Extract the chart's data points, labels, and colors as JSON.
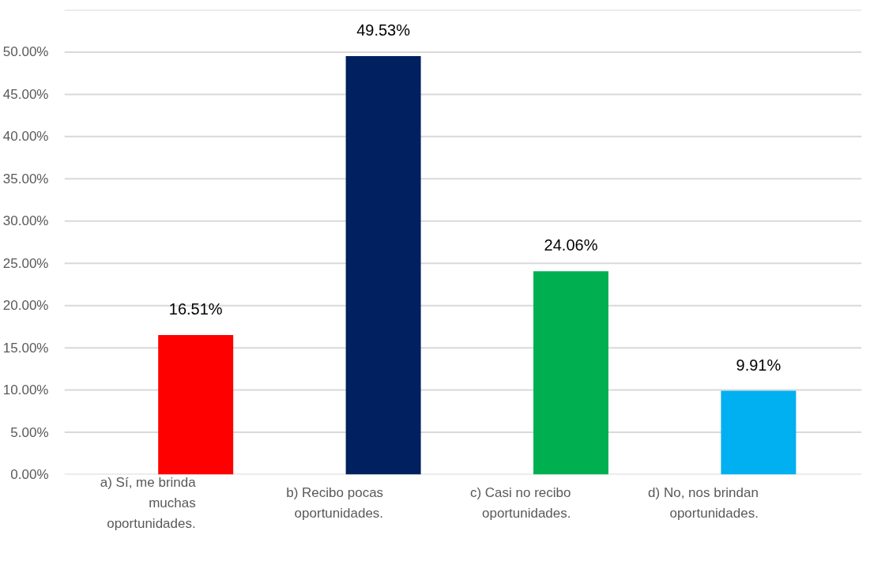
{
  "chart_data": {
    "type": "bar",
    "categories": [
      "a) Sí, me brinda muchas oportunidades.",
      "b) Recibo pocas oportunidades.",
      "c) Casi no recibo oportunidades.",
      "d) No, nos brindan oportunidades."
    ],
    "values": [
      16.51,
      49.53,
      24.06,
      9.91
    ],
    "colors": [
      "#ff0000",
      "#002060",
      "#00b050",
      "#00b0f0"
    ],
    "value_labels": [
      "16.51%",
      "49.53%",
      "24.06%",
      "9.91%"
    ],
    "ylim": [
      0,
      55
    ],
    "yticks": [
      {
        "value": 0,
        "label": "0.00%"
      },
      {
        "value": 5,
        "label": "5.00%"
      },
      {
        "value": 10,
        "label": "10.00%"
      },
      {
        "value": 15,
        "label": "15.00%"
      },
      {
        "value": 20,
        "label": "20.00%"
      },
      {
        "value": 25,
        "label": "25.00%"
      },
      {
        "value": 30,
        "label": "30.00%"
      },
      {
        "value": 35,
        "label": "35.00%"
      },
      {
        "value": 40,
        "label": "40.00%"
      },
      {
        "value": 45,
        "label": "45.00%"
      },
      {
        "value": 50,
        "label": "50.00%"
      },
      {
        "value": 55,
        "label": null
      }
    ],
    "grid": "y"
  }
}
